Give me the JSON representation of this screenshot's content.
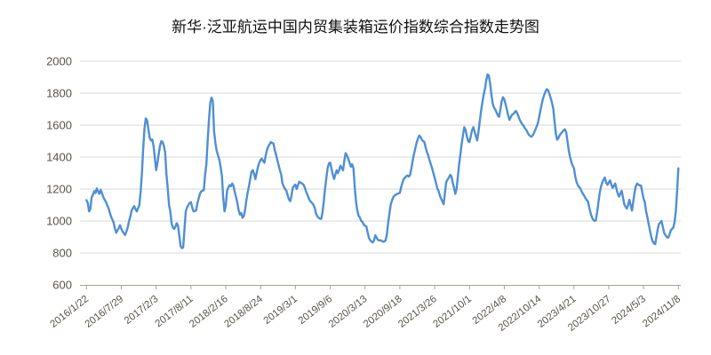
{
  "title": "新华·泛亚航运中国内贸集装箱运价指数综合指数走势图",
  "colors": {
    "line": "#4f8fd4",
    "grid": "#d9d9d9",
    "axis": "#a9a29a",
    "tick": "#a9a29a",
    "labels": "#5a534a",
    "title": "#111111",
    "background": "#ffffff"
  },
  "chart_data": {
    "type": "line",
    "title": "新华·泛亚航运中国内贸集装箱运价指数综合指数走势图",
    "xlabel": "",
    "ylabel": "",
    "ylim": [
      600,
      2000
    ],
    "y_ticks": [
      600,
      800,
      1000,
      1200,
      1400,
      1600,
      1800,
      2000
    ],
    "grid": "horizontal",
    "legend": "none",
    "x_tick_labels": [
      "2016/1/22",
      "2016/7/29",
      "2017/2/3",
      "2017/8/11",
      "2018/2/16",
      "2018/8/24",
      "2019/3/1",
      "2019/9/6",
      "2020/3/13",
      "2020/9/18",
      "2021/3/26",
      "2021/10/1",
      "2022/4/8",
      "2022/10/14",
      "2023/4/21",
      "2023/10/27",
      "2024/5/3",
      "2024/11/8"
    ],
    "x_tick_every_n_points": 27,
    "frequency": "weekly",
    "series": [
      {
        "name": "综合指数",
        "color": "#4f8fd4",
        "values": [
          1130,
          1112,
          1060,
          1075,
          1148,
          1165,
          1187,
          1175,
          1204,
          1185,
          1170,
          1195,
          1175,
          1150,
          1135,
          1120,
          1100,
          1083,
          1055,
          1028,
          1010,
          991,
          955,
          926,
          940,
          955,
          974,
          950,
          935,
          922,
          912,
          935,
          960,
          1000,
          1028,
          1065,
          1080,
          1093,
          1075,
          1060,
          1080,
          1100,
          1180,
          1300,
          1450,
          1580,
          1642,
          1630,
          1575,
          1522,
          1504,
          1510,
          1470,
          1395,
          1318,
          1360,
          1420,
          1470,
          1500,
          1495,
          1470,
          1430,
          1290,
          1207,
          1100,
          1060,
          984,
          960,
          950,
          965,
          986,
          970,
          905,
          843,
          830,
          835,
          950,
          1060,
          1085,
          1100,
          1113,
          1118,
          1085,
          1060,
          1062,
          1065,
          1110,
          1140,
          1171,
          1185,
          1190,
          1192,
          1290,
          1356,
          1504,
          1633,
          1740,
          1772,
          1750,
          1560,
          1487,
          1440,
          1411,
          1383,
          1340,
          1283,
          1150,
          1060,
          1095,
          1189,
          1210,
          1225,
          1217,
          1235,
          1220,
          1180,
          1150,
          1113,
          1068,
          1040,
          1050,
          1020,
          1030,
          1070,
          1130,
          1180,
          1217,
          1265,
          1309,
          1318,
          1295,
          1263,
          1300,
          1340,
          1365,
          1383,
          1390,
          1375,
          1365,
          1410,
          1445,
          1467,
          1480,
          1494,
          1488,
          1485,
          1445,
          1415,
          1383,
          1350,
          1318,
          1290,
          1235,
          1215,
          1200,
          1189,
          1160,
          1135,
          1124,
          1160,
          1209,
          1220,
          1228,
          1200,
          1225,
          1246,
          1240,
          1235,
          1230,
          1215,
          1190,
          1171,
          1150,
          1130,
          1120,
          1113,
          1100,
          1083,
          1046,
          1030,
          1020,
          1015,
          1013,
          1050,
          1120,
          1200,
          1270,
          1330,
          1361,
          1365,
          1330,
          1290,
          1263,
          1290,
          1318,
          1300,
          1320,
          1346,
          1330,
          1318,
          1380,
          1425,
          1410,
          1390,
          1365,
          1340,
          1355,
          1330,
          1217,
          1120,
          1068,
          1032,
          1022,
          1000,
          995,
          977,
          970,
          966,
          930,
          895,
          880,
          870,
          866,
          880,
          911,
          895,
          882,
          878,
          880,
          875,
          870,
          872,
          880,
          920,
          990,
          1050,
          1105,
          1130,
          1150,
          1160,
          1165,
          1170,
          1172,
          1176,
          1210,
          1240,
          1262,
          1270,
          1280,
          1285,
          1278,
          1290,
          1330,
          1380,
          1417,
          1455,
          1490,
          1515,
          1535,
          1528,
          1510,
          1500,
          1494,
          1460,
          1430,
          1411,
          1380,
          1356,
          1330,
          1300,
          1270,
          1240,
          1205,
          1189,
          1160,
          1140,
          1122,
          1105,
          1180,
          1244,
          1260,
          1270,
          1289,
          1280,
          1240,
          1210,
          1170,
          1200,
          1280,
          1356,
          1420,
          1485,
          1540,
          1587,
          1570,
          1530,
          1500,
          1494,
          1530,
          1568,
          1587,
          1560,
          1530,
          1504,
          1560,
          1624,
          1690,
          1744,
          1790,
          1828,
          1880,
          1918,
          1911,
          1860,
          1791,
          1735,
          1710,
          1698,
          1680,
          1660,
          1652,
          1700,
          1750,
          1775,
          1760,
          1730,
          1698,
          1661,
          1633,
          1650,
          1665,
          1670,
          1680,
          1689,
          1675,
          1655,
          1633,
          1618,
          1605,
          1595,
          1580,
          1570,
          1555,
          1540,
          1532,
          1528,
          1535,
          1550,
          1570,
          1590,
          1610,
          1650,
          1690,
          1730,
          1765,
          1790,
          1810,
          1825,
          1818,
          1795,
          1768,
          1740,
          1700,
          1620,
          1545,
          1509,
          1520,
          1537,
          1548,
          1558,
          1568,
          1574,
          1555,
          1500,
          1440,
          1400,
          1368,
          1348,
          1330,
          1280,
          1245,
          1225,
          1212,
          1204,
          1185,
          1170,
          1157,
          1142,
          1130,
          1120,
          1080,
          1048,
          1022,
          1008,
          1000,
          1005,
          1055,
          1115,
          1176,
          1215,
          1240,
          1259,
          1272,
          1240,
          1226,
          1240,
          1254,
          1230,
          1207,
          1220,
          1235,
          1200,
          1170,
          1152,
          1172,
          1189,
          1150,
          1105,
          1090,
          1078,
          1100,
          1133,
          1100,
          1065,
          1120,
          1180,
          1217,
          1235,
          1228,
          1222,
          1222,
          1180,
          1140,
          1115,
          1060,
          1022,
          980,
          939,
          900,
          874,
          860,
          855,
          900,
          950,
          982,
          990,
          1000,
          960,
          925,
          911,
          900,
          895,
          910,
          939,
          950,
          957,
          990,
          1060,
          1180,
          1330
        ]
      }
    ]
  }
}
